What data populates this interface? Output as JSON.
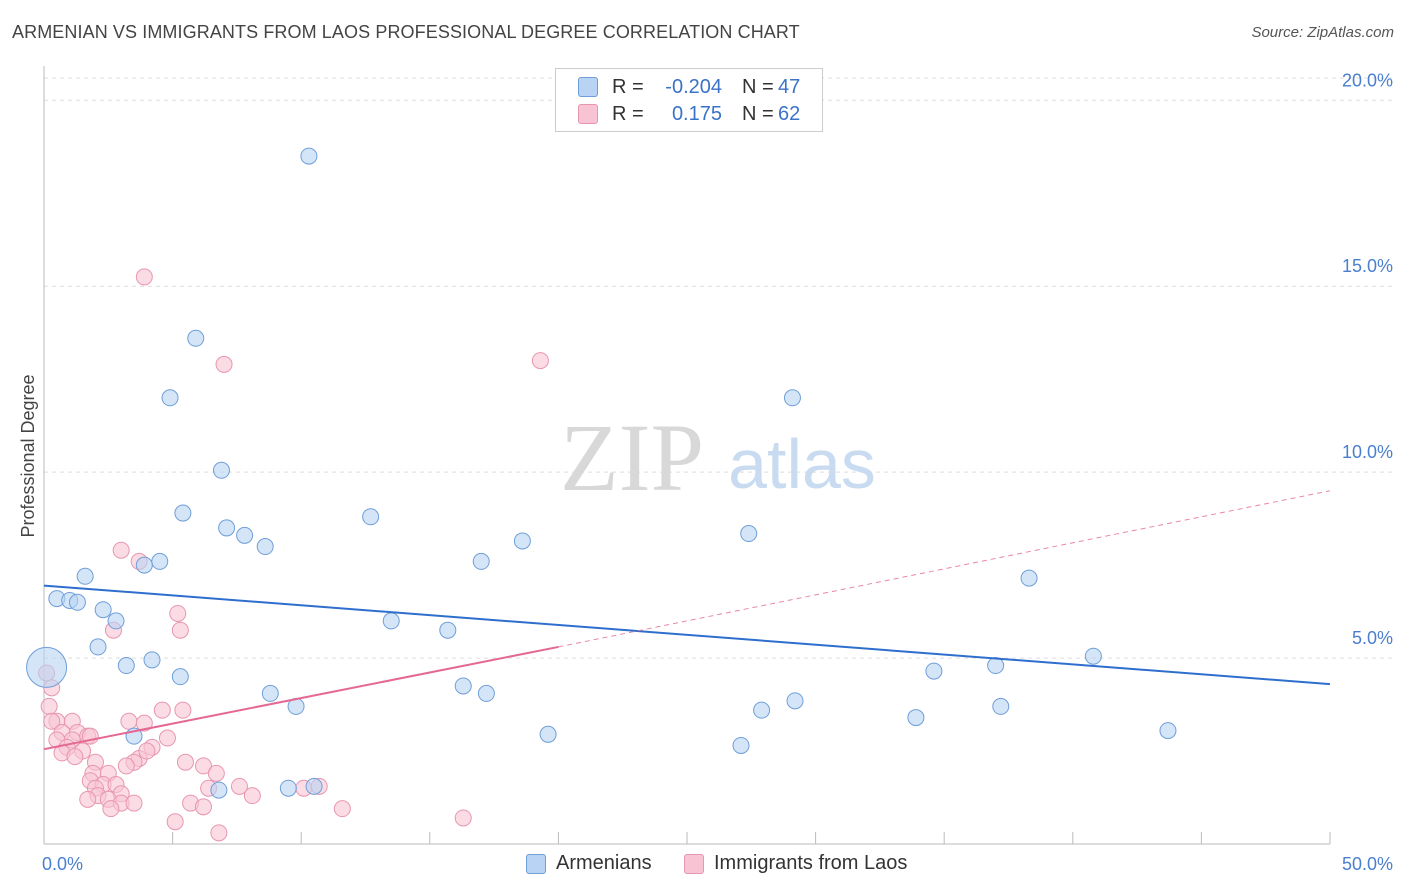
{
  "title": "ARMENIAN VS IMMIGRANTS FROM LAOS PROFESSIONAL DEGREE CORRELATION CHART",
  "source": "Source: ZipAtlas.com",
  "watermark": {
    "zip": "ZIP",
    "atlas": "atlas"
  },
  "legend": {
    "r_label": "R =",
    "n_label": "N =",
    "rows": [
      {
        "r": "-0.204",
        "n": "47"
      },
      {
        "r": "0.175",
        "n": "62"
      }
    ]
  },
  "bottom_legend": [
    "Armenians",
    "Immigrants from Laos"
  ],
  "chart_data": {
    "type": "scatter",
    "title": "ARMENIAN VS IMMIGRANTS FROM LAOS PROFESSIONAL DEGREE CORRELATION CHART",
    "xlabel": "",
    "ylabel": "Professional Degree",
    "xlim": [
      0,
      50
    ],
    "ylim": [
      0,
      20.6
    ],
    "x_tick_labels": [
      "0.0%",
      "50.0%"
    ],
    "y_ticks": [
      5,
      10,
      15,
      20
    ],
    "y_tick_labels": [
      "5.0%",
      "10.0%",
      "15.0%",
      "20.0%"
    ],
    "grid": true,
    "colors": {
      "armenians_fill": "#b8d3f4",
      "armenians_stroke": "#6f9ed8",
      "armenians_line": "#2e6fcd",
      "laos_fill": "#f8c4d4",
      "laos_stroke": "#e896b0",
      "laos_line": "#e46893",
      "tick_label": "#4a7fcf",
      "grid": "#dddddd"
    },
    "series": [
      {
        "name": "Armenians",
        "trend": {
          "x0": 0,
          "y0": 6.95,
          "x1": 50,
          "y1": 4.3
        },
        "points": [
          [
            10.3,
            18.5
          ],
          [
            5.9,
            13.6
          ],
          [
            4.9,
            12.0
          ],
          [
            29.1,
            12.0
          ],
          [
            6.9,
            10.05
          ],
          [
            5.4,
            8.9
          ],
          [
            12.7,
            8.8
          ],
          [
            7.1,
            8.5
          ],
          [
            7.8,
            8.3
          ],
          [
            8.6,
            8.0
          ],
          [
            18.6,
            8.15
          ],
          [
            27.4,
            8.35
          ],
          [
            17.0,
            7.6
          ],
          [
            4.5,
            7.6
          ],
          [
            3.9,
            7.5
          ],
          [
            1.6,
            7.2
          ],
          [
            38.3,
            7.15
          ],
          [
            0.5,
            6.6
          ],
          [
            1.0,
            6.55
          ],
          [
            1.3,
            6.5
          ],
          [
            2.3,
            6.3
          ],
          [
            2.8,
            6.0
          ],
          [
            13.5,
            6.0
          ],
          [
            15.7,
            5.75
          ],
          [
            2.1,
            5.3
          ],
          [
            40.8,
            5.05
          ],
          [
            4.2,
            4.95
          ],
          [
            3.2,
            4.8
          ],
          [
            0.1,
            4.75
          ],
          [
            37.0,
            4.8
          ],
          [
            34.6,
            4.65
          ],
          [
            5.3,
            4.5
          ],
          [
            16.3,
            4.25
          ],
          [
            17.2,
            4.05
          ],
          [
            8.8,
            4.05
          ],
          [
            29.2,
            3.85
          ],
          [
            9.8,
            3.7
          ],
          [
            27.9,
            3.6
          ],
          [
            37.2,
            3.7
          ],
          [
            33.9,
            3.4
          ],
          [
            43.7,
            3.05
          ],
          [
            19.6,
            2.95
          ],
          [
            27.1,
            2.65
          ],
          [
            3.5,
            2.9
          ],
          [
            6.8,
            1.45
          ],
          [
            9.5,
            1.5
          ],
          [
            10.5,
            1.55
          ]
        ]
      },
      {
        "name": "Immigrants from Laos",
        "trend": {
          "x0": 0,
          "y0": 2.55,
          "x1": 20,
          "y1": 5.3
        },
        "trend_dashed": {
          "x0": 20,
          "y0": 5.3,
          "x1": 50,
          "y1": 9.5
        },
        "points": [
          [
            3.9,
            15.25
          ],
          [
            7.0,
            12.9
          ],
          [
            19.3,
            13.0
          ],
          [
            3.0,
            7.9
          ],
          [
            3.7,
            7.6
          ],
          [
            5.2,
            6.2
          ],
          [
            5.3,
            5.75
          ],
          [
            2.7,
            5.75
          ],
          [
            0.1,
            4.6
          ],
          [
            0.3,
            4.2
          ],
          [
            0.2,
            3.7
          ],
          [
            5.4,
            3.6
          ],
          [
            4.6,
            3.6
          ],
          [
            0.5,
            3.3
          ],
          [
            0.3,
            3.3
          ],
          [
            1.1,
            3.3
          ],
          [
            3.3,
            3.3
          ],
          [
            3.9,
            3.25
          ],
          [
            0.7,
            3.0
          ],
          [
            1.3,
            3.0
          ],
          [
            1.7,
            2.9
          ],
          [
            0.5,
            2.8
          ],
          [
            1.1,
            2.8
          ],
          [
            1.8,
            2.9
          ],
          [
            4.8,
            2.85
          ],
          [
            0.9,
            2.6
          ],
          [
            1.5,
            2.5
          ],
          [
            4.2,
            2.6
          ],
          [
            0.7,
            2.45
          ],
          [
            1.2,
            2.35
          ],
          [
            2.0,
            2.2
          ],
          [
            3.7,
            2.3
          ],
          [
            4.0,
            2.5
          ],
          [
            3.5,
            2.2
          ],
          [
            5.5,
            2.2
          ],
          [
            6.2,
            2.1
          ],
          [
            3.2,
            2.1
          ],
          [
            1.9,
            1.9
          ],
          [
            2.5,
            1.9
          ],
          [
            6.7,
            1.9
          ],
          [
            1.8,
            1.7
          ],
          [
            2.3,
            1.6
          ],
          [
            2.0,
            1.5
          ],
          [
            2.8,
            1.6
          ],
          [
            6.4,
            1.5
          ],
          [
            7.6,
            1.55
          ],
          [
            2.1,
            1.3
          ],
          [
            3.0,
            1.35
          ],
          [
            1.7,
            1.2
          ],
          [
            2.5,
            1.2
          ],
          [
            3.0,
            1.1
          ],
          [
            3.5,
            1.1
          ],
          [
            5.7,
            1.1
          ],
          [
            6.2,
            1.0
          ],
          [
            2.6,
            0.95
          ],
          [
            8.1,
            1.3
          ],
          [
            10.1,
            1.5
          ],
          [
            10.7,
            1.55
          ],
          [
            11.6,
            0.95
          ],
          [
            5.1,
            0.6
          ],
          [
            16.3,
            0.7
          ],
          [
            6.8,
            0.3
          ]
        ]
      }
    ]
  }
}
